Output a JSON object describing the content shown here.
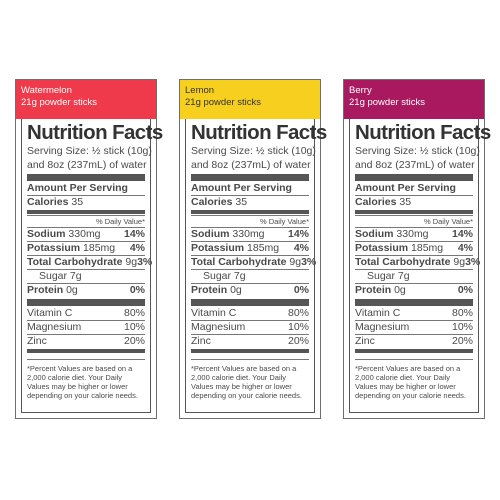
{
  "panels": [
    {
      "flavor": "Watermelon",
      "subtitle": "21g powder sticks",
      "header_color": "#ef3a4b",
      "header_text_color": "#ffffff"
    },
    {
      "flavor": "Lemon",
      "subtitle": "21g powder sticks",
      "header_color": "#f7cf1f",
      "header_text_color": "#333333"
    },
    {
      "flavor": "Berry",
      "subtitle": "21g powder sticks",
      "header_color": "#a8195f",
      "header_text_color": "#ffffff"
    }
  ],
  "label": {
    "title": "Nutrition Facts",
    "serving_line1": "Serving Size: ½ stick (10g)",
    "serving_line2": "and 8oz (237mL) of water",
    "amount_per_serving": "Amount Per Serving",
    "calories_label": "Calories",
    "calories_value": "35",
    "dv_header": "% Daily Value*",
    "sodium_label": "Sodium",
    "sodium_amount": "330mg",
    "sodium_dv": "14%",
    "potassium_label": "Potassium",
    "potassium_amount": "185mg",
    "potassium_dv": "4%",
    "carb_label": "Total Carbohydrate",
    "carb_amount": "9g",
    "carb_dv": "3%",
    "sugar_label": "Sugar 7g",
    "protein_label": "Protein",
    "protein_amount": "0g",
    "protein_dv": "0%",
    "vitc_label": "Vitamin C",
    "vitc_dv": "80%",
    "magnesium_label": "Magnesium",
    "magnesium_dv": "10%",
    "zinc_label": "Zinc",
    "zinc_dv": "20%",
    "footnote": "*Percent Values are based on a 2,000 calorie diet. Your Daily Values may be higher or lower depending on your calorie needs."
  }
}
